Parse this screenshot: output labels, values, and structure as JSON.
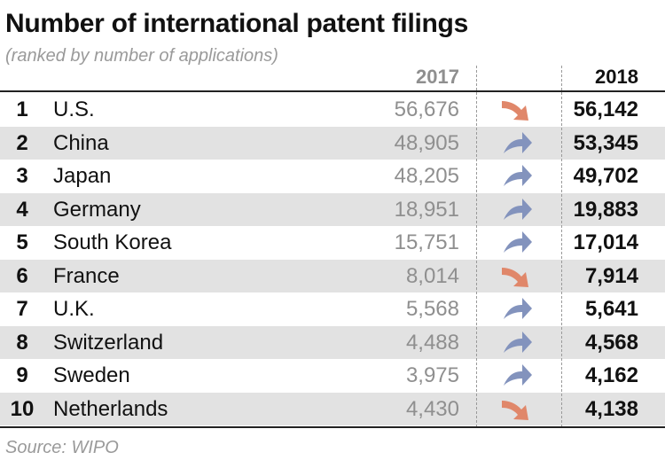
{
  "title": "Number of international patent filings",
  "subtitle": "(ranked by number of applications)",
  "source": "Source: WIPO",
  "colors": {
    "up": "#8393bd",
    "down": "#e0876a",
    "shade": "#e2e2e2"
  },
  "chart_data": {
    "type": "table",
    "columns": [
      "",
      "",
      "2017",
      "",
      "2018"
    ],
    "rows": [
      {
        "rank": "1",
        "country": "U.S.",
        "v2017": "56,676",
        "v2018": "56,142",
        "trend": "down"
      },
      {
        "rank": "2",
        "country": "China",
        "v2017": "48,905",
        "v2018": "53,345",
        "trend": "up"
      },
      {
        "rank": "3",
        "country": "Japan",
        "v2017": "48,205",
        "v2018": "49,702",
        "trend": "up"
      },
      {
        "rank": "4",
        "country": "Germany",
        "v2017": "18,951",
        "v2018": "19,883",
        "trend": "up"
      },
      {
        "rank": "5",
        "country": "South Korea",
        "v2017": "15,751",
        "v2018": "17,014",
        "trend": "up"
      },
      {
        "rank": "6",
        "country": "France",
        "v2017": "8,014",
        "v2018": "7,914",
        "trend": "down"
      },
      {
        "rank": "7",
        "country": "U.K.",
        "v2017": "5,568",
        "v2018": "5,641",
        "trend": "up"
      },
      {
        "rank": "8",
        "country": "Switzerland",
        "v2017": "4,488",
        "v2018": "4,568",
        "trend": "up"
      },
      {
        "rank": "9",
        "country": "Sweden",
        "v2017": "3,975",
        "v2018": "4,162",
        "trend": "up"
      },
      {
        "rank": "10",
        "country": "Netherlands",
        "v2017": "4,430",
        "v2018": "4,138",
        "trend": "down"
      }
    ]
  }
}
